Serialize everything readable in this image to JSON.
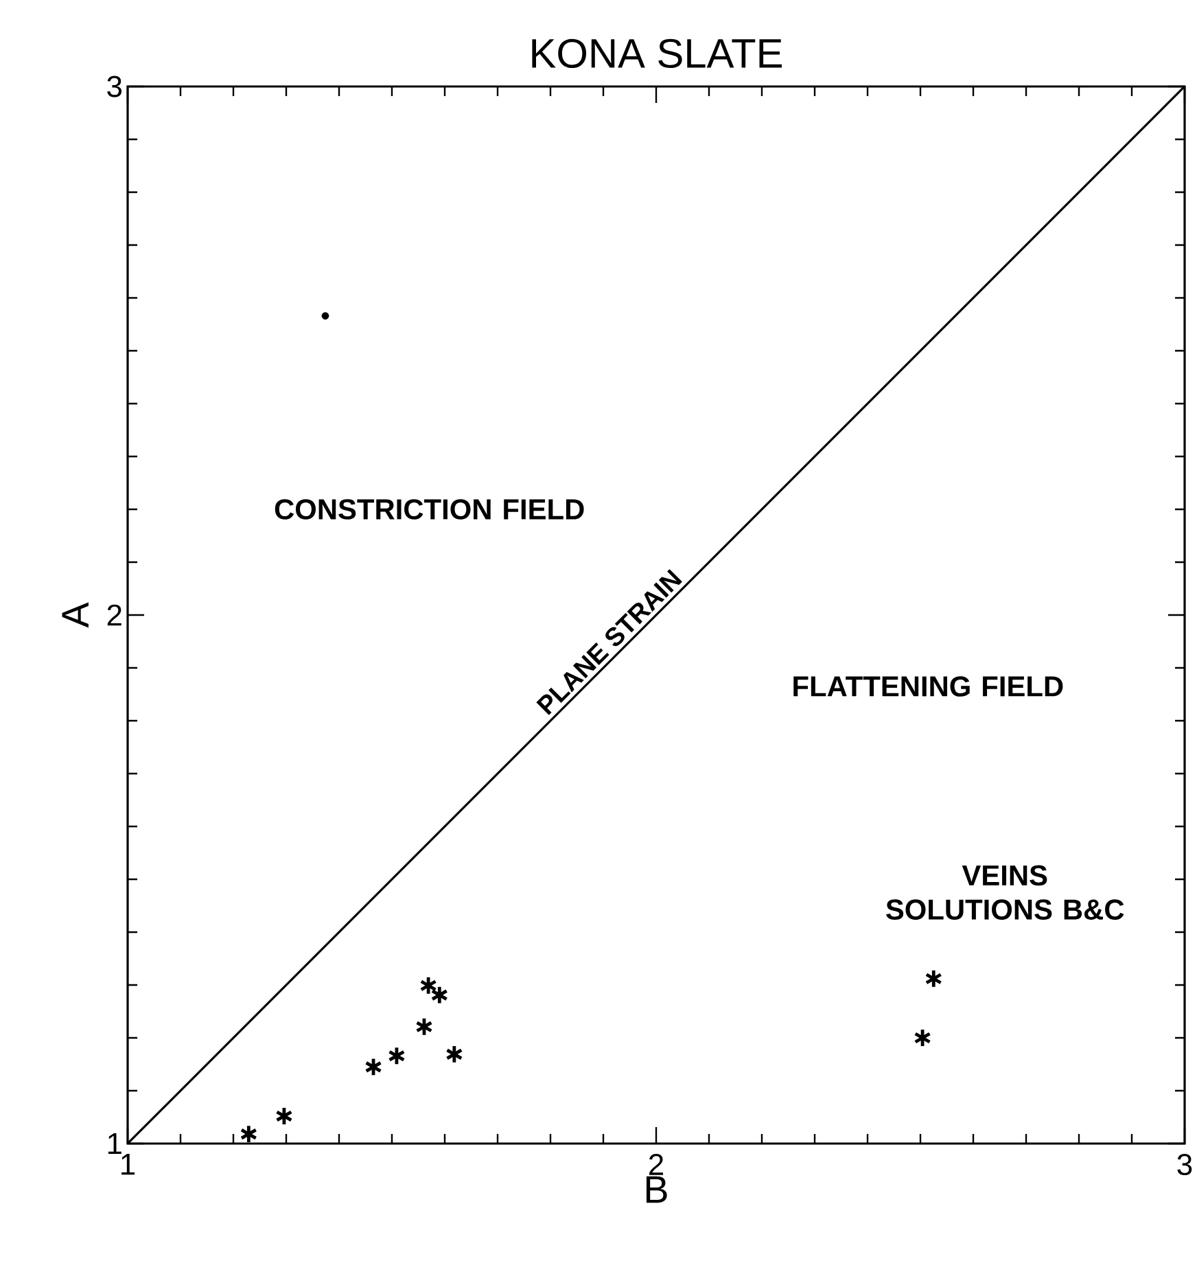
{
  "chart_data": {
    "type": "scatter",
    "title": "KONA SLATE",
    "xlabel": "B",
    "ylabel": "A",
    "xlim": [
      1,
      3
    ],
    "ylim": [
      1,
      3
    ],
    "xticks": [
      1,
      2,
      3
    ],
    "yticks": [
      1,
      2,
      3
    ],
    "grid": false,
    "series": [
      {
        "type": "line",
        "color": "#000000",
        "marker": "none",
        "line_style": "solid",
        "x": [
          1,
          3
        ],
        "values": [
          1,
          3
        ]
      },
      {
        "color": "#000000",
        "marker": "circle",
        "x": [
          1.374
        ],
        "values": [
          2.566
        ]
      },
      {
        "color": "#000000",
        "marker": "cross",
        "x": [
          1.229,
          1.296,
          1.465,
          1.509,
          1.561,
          1.569,
          1.59,
          1.618,
          2.504,
          2.525
        ],
        "values": [
          1.018,
          1.052,
          1.145,
          1.166,
          1.221,
          1.299,
          1.281,
          1.169,
          1.2,
          1.312
        ]
      }
    ],
    "annotations": [
      "CONSTRICTION FIELD",
      {
        "text": "PLANE STRAIN",
        "x": 1.93,
        "y": 1.93
      },
      "FLATTENING FIELD",
      "VEINS SOLUTIONS B&C"
    ]
  }
}
